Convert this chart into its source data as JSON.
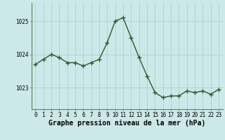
{
  "x": [
    0,
    1,
    2,
    3,
    4,
    5,
    6,
    7,
    8,
    9,
    10,
    11,
    12,
    13,
    14,
    15,
    16,
    17,
    18,
    19,
    20,
    21,
    22,
    23
  ],
  "y": [
    1023.7,
    1023.85,
    1024.0,
    1023.9,
    1023.75,
    1023.75,
    1023.65,
    1023.75,
    1023.85,
    1024.35,
    1025.0,
    1025.1,
    1024.5,
    1023.9,
    1023.35,
    1022.85,
    1022.7,
    1022.75,
    1022.75,
    1022.9,
    1022.85,
    1022.9,
    1022.8,
    1022.95
  ],
  "line_color": "#2d5a2d",
  "marker": "+",
  "marker_size": 4,
  "marker_color": "#2d5a2d",
  "bg_color": "#cce8e8",
  "grid_color": "#aacccc",
  "xlabel": "Graphe pression niveau de la mer (hPa)",
  "xlabel_fontsize": 7,
  "ytick_labels": [
    "1023",
    "1024",
    "1025"
  ],
  "ytick_values": [
    1023,
    1024,
    1025
  ],
  "xticks": [
    0,
    1,
    2,
    3,
    4,
    5,
    6,
    7,
    8,
    9,
    10,
    11,
    12,
    13,
    14,
    15,
    16,
    17,
    18,
    19,
    20,
    21,
    22,
    23
  ],
  "ylim": [
    1022.35,
    1025.55
  ],
  "xlim": [
    -0.5,
    23.5
  ],
  "tick_fontsize": 5.5,
  "linewidth": 1.0,
  "spine_color": "#558855"
}
